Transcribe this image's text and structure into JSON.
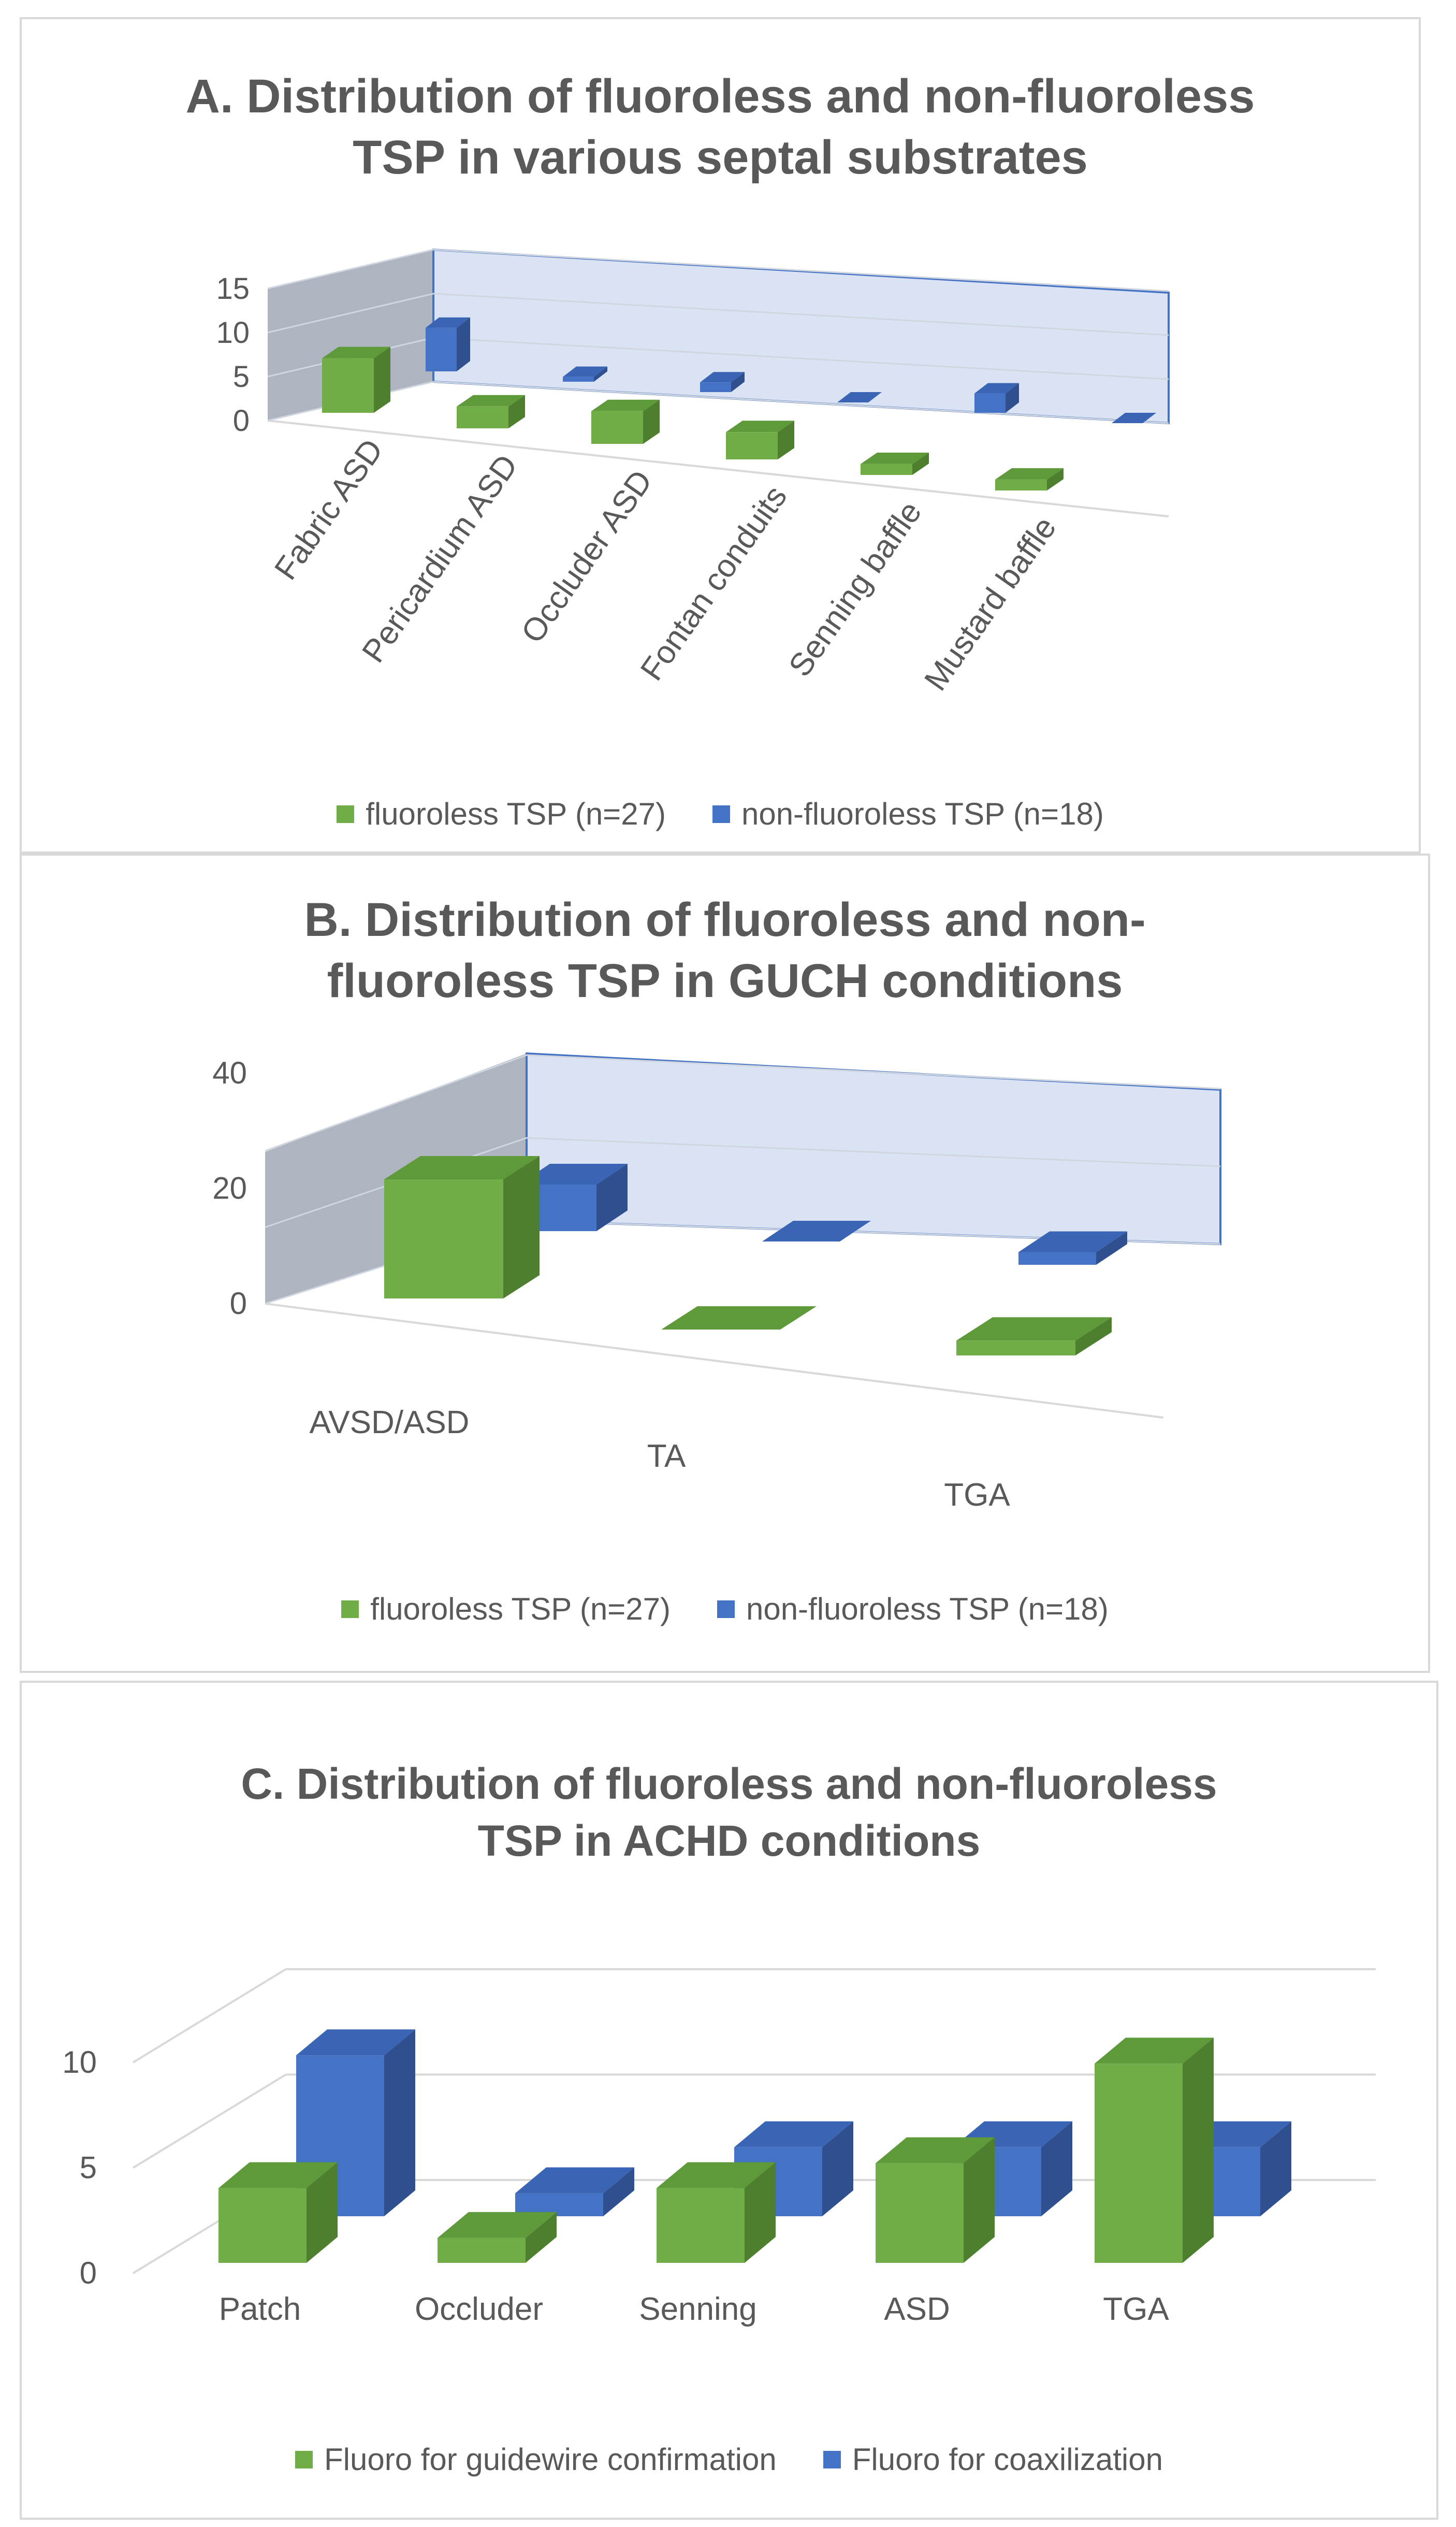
{
  "colors": {
    "green_front": "#70ad47",
    "green_top": "#5f9a3a",
    "green_side": "#4d7f2e",
    "blue_front": "#4472c4",
    "blue_top": "#3a64b4",
    "blue_side": "#2f4f8f",
    "grid": "#d9d9d9",
    "wall_blue": "#dae3f3",
    "wall_gray": "#8c96a6",
    "wall_edge": "#4472c4",
    "text": "#595959"
  },
  "chart_data": [
    {
      "type": "bar",
      "variant": "3d-clustered",
      "title": "A. Distribution of fluoroless and non-fluoroless TSP in various septal substrates",
      "categories": [
        "Fabric ASD",
        "Pericardium ASD",
        "Occluder ASD",
        "Fontan conduits",
        "Senning baffle",
        "Mustard baffle"
      ],
      "series": [
        {
          "name": "fluoroless TSP (n=27)",
          "values": [
            10,
            4,
            6,
            5,
            2,
            2
          ],
          "color": "green"
        },
        {
          "name": "non-fluoroless TSP (n=18)",
          "values": [
            9,
            1,
            2,
            0,
            4,
            0
          ],
          "color": "blue"
        }
      ],
      "ylim": [
        0,
        15
      ],
      "yticks": [
        "0",
        "5",
        "10",
        "15"
      ],
      "legend_position": "bottom"
    },
    {
      "type": "bar",
      "variant": "3d-clustered",
      "title": "B. Distribution of fluoroless and non-fluoroless TSP in GUCH conditions",
      "categories": [
        "AVSD/ASD",
        "TA",
        "TGA"
      ],
      "series": [
        {
          "name": "fluoroless TSP (n=27)",
          "values": [
            24,
            0,
            3
          ],
          "color": "green"
        },
        {
          "name": "non-fluoroless TSP (n=18)",
          "values": [
            11,
            0,
            3
          ],
          "color": "blue"
        }
      ],
      "ylim": [
        0,
        40
      ],
      "yticks": [
        "0",
        "20",
        "40"
      ],
      "legend_position": "bottom"
    },
    {
      "type": "bar",
      "variant": "3d-clustered",
      "title": "C. Distribution of fluoroless and non-fluoroless TSP in ACHD conditions",
      "categories": [
        "Patch",
        "Occluder",
        "Senning",
        "ASD",
        "TGA"
      ],
      "series": [
        {
          "name": "Fluoro for guidewire confirmation",
          "values": [
            3,
            1,
            3,
            4,
            8
          ],
          "color": "green"
        },
        {
          "name": "Fluoro for coaxilization",
          "values": [
            7,
            1,
            3,
            3,
            3
          ],
          "color": "blue"
        }
      ],
      "ylim": [
        0,
        10
      ],
      "yticks": [
        "0",
        "5",
        "10"
      ],
      "legend_position": "bottom"
    }
  ]
}
